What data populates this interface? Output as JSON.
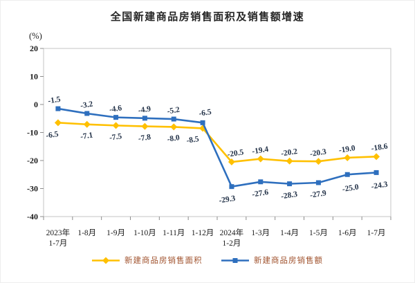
{
  "chart_data": {
    "type": "line",
    "title": "全国新建商品房销售面积及销售额增速",
    "ylabel": "(%)",
    "categories": [
      [
        "2023年",
        "1-7月"
      ],
      [
        "1-8月"
      ],
      [
        "1-9月"
      ],
      [
        "1-10月"
      ],
      [
        "1-11月"
      ],
      [
        "1-12月"
      ],
      [
        "2024年",
        "1-2月"
      ],
      [
        "1-3月"
      ],
      [
        "1-4月"
      ],
      [
        "1-5月"
      ],
      [
        "1-6月"
      ],
      [
        "1-7月"
      ]
    ],
    "series": [
      {
        "name": "新建商品房销售面积",
        "marker": "diamond",
        "color": "#FFC000",
        "values": [
          -6.5,
          -7.1,
          -7.5,
          -7.8,
          -8.0,
          -8.5,
          -20.5,
          -19.4,
          -20.2,
          -20.3,
          -19.0,
          -18.6
        ]
      },
      {
        "name": "新建商品房销售额",
        "marker": "square",
        "color": "#2E6FBE",
        "values": [
          -1.5,
          -3.2,
          -4.6,
          -4.9,
          -5.2,
          -6.5,
          -29.3,
          -27.6,
          -28.3,
          -27.9,
          -25.0,
          -24.3
        ]
      }
    ],
    "ylim": [
      -40,
      20
    ],
    "yticks": [
      20,
      10,
      0,
      -10,
      -20,
      -30,
      -40
    ],
    "grid": false,
    "legend_position": "bottom",
    "data_label_color": "#233248",
    "axis_frame_color": "#c6c6c6",
    "tick_color": "#8c8c8c",
    "legend_text_color": "#A0522D"
  }
}
